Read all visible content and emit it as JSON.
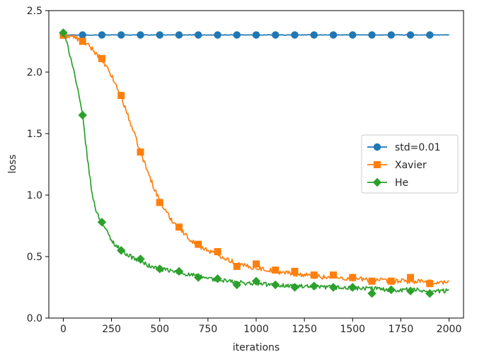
{
  "chart_data": {
    "type": "line",
    "title": "",
    "xlabel": "iterations",
    "ylabel": "loss",
    "xlim": [
      -75,
      2075
    ],
    "ylim": [
      0.0,
      2.5
    ],
    "xticks": [
      0,
      250,
      500,
      750,
      1000,
      1250,
      1500,
      1750,
      2000
    ],
    "yticks": [
      0.0,
      0.5,
      1.0,
      1.5,
      2.0,
      2.5
    ],
    "xtick_labels": [
      "0",
      "250",
      "500",
      "750",
      "1000",
      "1250",
      "1500",
      "1750",
      "2000"
    ],
    "ytick_labels": [
      "0.0",
      "0.5",
      "1.0",
      "1.5",
      "2.0",
      "2.5"
    ],
    "grid": false,
    "legend_position": "center-right",
    "series": [
      {
        "name": "std=0.01",
        "color": "#1f77b4",
        "marker": "circle",
        "curve": {
          "x": [
            0,
            2000
          ],
          "y": [
            2.302,
            2.302
          ],
          "noise": 0.002
        },
        "markers": {
          "x": [
            0,
            100,
            200,
            300,
            400,
            500,
            600,
            700,
            800,
            900,
            1000,
            1100,
            1200,
            1300,
            1400,
            1500,
            1600,
            1700,
            1800,
            1900
          ],
          "y": [
            2.302,
            2.302,
            2.302,
            2.302,
            2.302,
            2.302,
            2.302,
            2.302,
            2.302,
            2.302,
            2.302,
            2.302,
            2.302,
            2.302,
            2.302,
            2.302,
            2.302,
            2.302,
            2.302,
            2.302
          ]
        }
      },
      {
        "name": "Xavier",
        "color": "#ff7f0e",
        "marker": "square",
        "curve": {
          "x": [
            0,
            50,
            100,
            150,
            200,
            250,
            300,
            350,
            400,
            450,
            500,
            550,
            600,
            650,
            700,
            750,
            800,
            850,
            900,
            950,
            1000,
            1100,
            1200,
            1300,
            1400,
            1500,
            1600,
            1700,
            1800,
            1900,
            2000
          ],
          "y": [
            2.3,
            2.29,
            2.25,
            2.19,
            2.1,
            1.97,
            1.8,
            1.58,
            1.35,
            1.14,
            0.95,
            0.82,
            0.73,
            0.65,
            0.59,
            0.55,
            0.52,
            0.48,
            0.44,
            0.42,
            0.41,
            0.38,
            0.36,
            0.34,
            0.33,
            0.32,
            0.31,
            0.3,
            0.3,
            0.29,
            0.29
          ],
          "noise": 0.02
        },
        "markers": {
          "x": [
            0,
            100,
            200,
            300,
            400,
            500,
            600,
            700,
            800,
            900,
            1000,
            1100,
            1200,
            1300,
            1400,
            1500,
            1600,
            1700,
            1800,
            1900
          ],
          "y": [
            2.3,
            2.25,
            2.11,
            1.81,
            1.35,
            0.94,
            0.74,
            0.6,
            0.54,
            0.42,
            0.44,
            0.39,
            0.38,
            0.35,
            0.35,
            0.33,
            0.3,
            0.3,
            0.33,
            0.28
          ]
        }
      },
      {
        "name": "He",
        "color": "#2ca02c",
        "marker": "diamond",
        "curve": {
          "x": [
            0,
            25,
            50,
            75,
            100,
            125,
            150,
            175,
            200,
            250,
            300,
            350,
            400,
            450,
            500,
            600,
            700,
            800,
            900,
            1000,
            1100,
            1200,
            1300,
            1400,
            1500,
            1600,
            1700,
            1800,
            1900,
            2000
          ],
          "y": [
            2.32,
            2.2,
            2.05,
            1.85,
            1.65,
            1.3,
            1.0,
            0.85,
            0.78,
            0.63,
            0.55,
            0.5,
            0.46,
            0.42,
            0.4,
            0.37,
            0.34,
            0.31,
            0.29,
            0.28,
            0.27,
            0.26,
            0.25,
            0.25,
            0.24,
            0.24,
            0.23,
            0.23,
            0.22,
            0.22
          ],
          "noise": 0.018
        },
        "markers": {
          "x": [
            0,
            100,
            200,
            300,
            400,
            500,
            600,
            700,
            800,
            900,
            1000,
            1100,
            1200,
            1300,
            1400,
            1500,
            1600,
            1700,
            1800,
            1900
          ],
          "y": [
            2.32,
            1.65,
            0.78,
            0.55,
            0.48,
            0.4,
            0.38,
            0.33,
            0.32,
            0.27,
            0.3,
            0.27,
            0.25,
            0.26,
            0.25,
            0.25,
            0.2,
            0.23,
            0.22,
            0.2
          ]
        }
      }
    ]
  }
}
